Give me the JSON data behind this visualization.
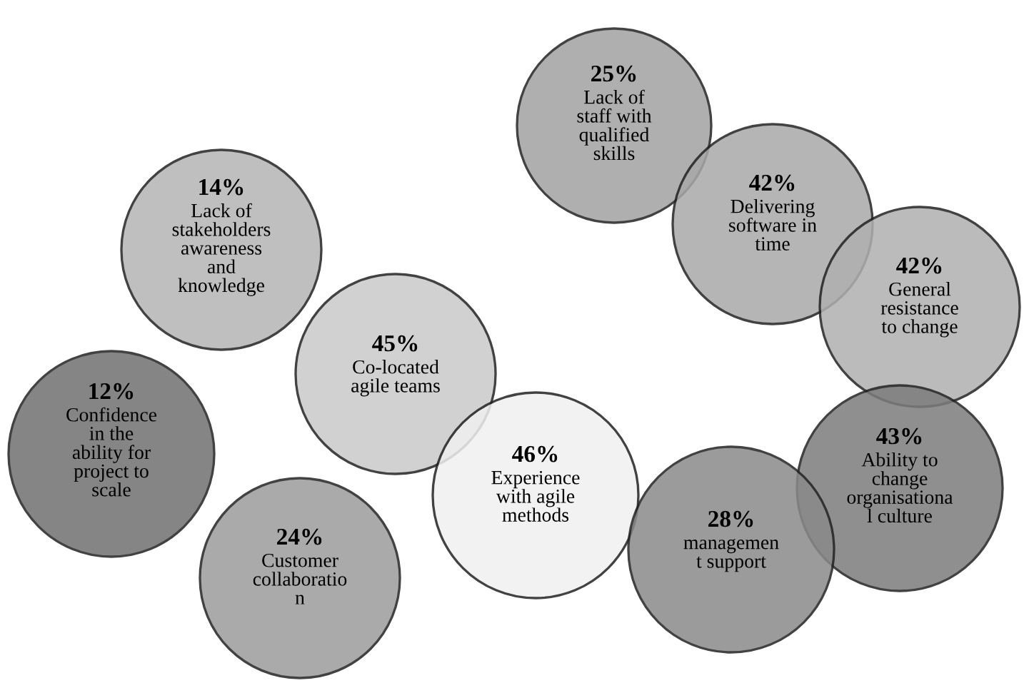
{
  "chart_data": {
    "type": "other",
    "categories": [
      "Lack of\nstaff with\nqualified\nskills",
      "Delivering\nsoftware in\ntime",
      "General\nresistance\nto change",
      "Lack of\nstakeholders\nawareness\nand\nknowledge",
      "Co-located\nagile teams",
      "Confidence\nin the\nability for\nproject to\nscale",
      "Experience\nwith agile\nmethods",
      "Ability to\nchange\norganisationa\nl culture",
      "managemen\nt support",
      "Customer\ncollaboratio\nn"
    ],
    "values": [
      25,
      42,
      42,
      14,
      45,
      12,
      46,
      43,
      28,
      24
    ],
    "value_labels": [
      "25%",
      "42%",
      "42%",
      "14%",
      "45%",
      "12%",
      "46%",
      "43%",
      "28%",
      "24%"
    ],
    "colors": [
      "#a2a2a2",
      "#a9a9a9",
      "#b0b0b0",
      "#b5b5b5",
      "#c9c9c9",
      "#707070",
      "#f0f0f0",
      "#7c7c7c",
      "#8a8a8a",
      "#9c9c9c"
    ]
  }
}
